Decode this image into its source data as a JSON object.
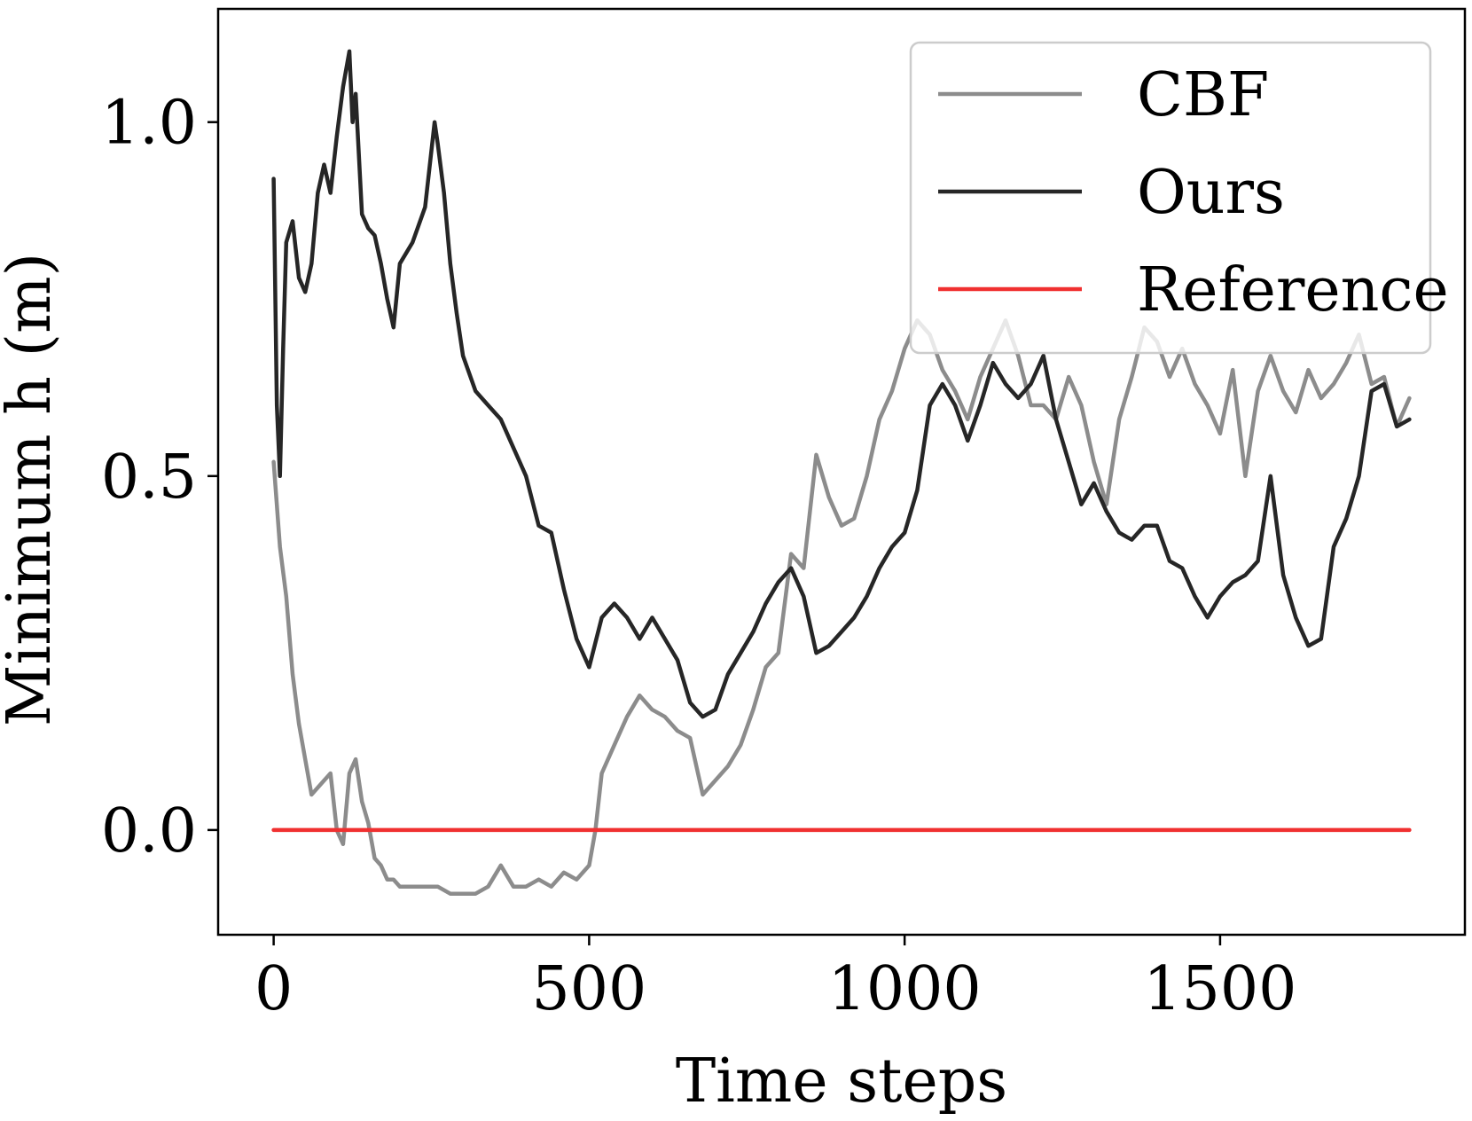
{
  "chart_data": {
    "type": "line",
    "title": "",
    "xlabel": "Time steps",
    "ylabel": "Minimum h (m)",
    "xlim": [
      -88,
      1888
    ],
    "ylim": [
      -0.148,
      1.16
    ],
    "xticks": [
      0,
      500,
      1000,
      1500
    ],
    "xtick_labels": [
      "0",
      "500",
      "1000",
      "1500"
    ],
    "yticks": [
      0.0,
      0.5,
      1.0
    ],
    "ytick_labels": [
      "0.0",
      "0.5",
      "1.0"
    ],
    "grid": false,
    "legend": {
      "position": "top-right",
      "alpha": 0.8
    },
    "series": [
      {
        "name": "CBF",
        "color": "#8c8c8c",
        "x": [
          0,
          10,
          20,
          30,
          40,
          50,
          60,
          70,
          80,
          90,
          100,
          110,
          120,
          130,
          140,
          150,
          160,
          170,
          180,
          190,
          200,
          220,
          240,
          260,
          280,
          300,
          320,
          340,
          360,
          380,
          400,
          420,
          440,
          460,
          480,
          500,
          510,
          520,
          540,
          560,
          580,
          600,
          620,
          640,
          660,
          680,
          700,
          720,
          740,
          760,
          780,
          800,
          820,
          840,
          860,
          880,
          900,
          920,
          940,
          960,
          980,
          1000,
          1020,
          1040,
          1060,
          1080,
          1100,
          1120,
          1140,
          1160,
          1180,
          1200,
          1220,
          1240,
          1260,
          1280,
          1300,
          1320,
          1340,
          1360,
          1380,
          1400,
          1420,
          1440,
          1460,
          1480,
          1500,
          1520,
          1540,
          1560,
          1580,
          1600,
          1620,
          1640,
          1660,
          1680,
          1700,
          1720,
          1740,
          1760,
          1780,
          1800
        ],
        "values": [
          0.52,
          0.4,
          0.33,
          0.22,
          0.15,
          0.1,
          0.05,
          0.06,
          0.07,
          0.08,
          0.0,
          -0.02,
          0.08,
          0.1,
          0.04,
          0.01,
          -0.04,
          -0.05,
          -0.07,
          -0.07,
          -0.08,
          -0.08,
          -0.08,
          -0.08,
          -0.09,
          -0.09,
          -0.09,
          -0.08,
          -0.05,
          -0.08,
          -0.08,
          -0.07,
          -0.08,
          -0.06,
          -0.07,
          -0.05,
          0.0,
          0.08,
          0.12,
          0.16,
          0.19,
          0.17,
          0.16,
          0.14,
          0.13,
          0.05,
          0.07,
          0.09,
          0.12,
          0.17,
          0.23,
          0.25,
          0.39,
          0.37,
          0.53,
          0.47,
          0.43,
          0.44,
          0.5,
          0.58,
          0.62,
          0.68,
          0.72,
          0.7,
          0.65,
          0.62,
          0.58,
          0.64,
          0.68,
          0.72,
          0.67,
          0.6,
          0.6,
          0.58,
          0.64,
          0.6,
          0.52,
          0.46,
          0.58,
          0.64,
          0.71,
          0.69,
          0.64,
          0.68,
          0.63,
          0.6,
          0.56,
          0.65,
          0.5,
          0.62,
          0.67,
          0.62,
          0.59,
          0.65,
          0.61,
          0.63,
          0.66,
          0.7,
          0.63,
          0.64,
          0.57,
          0.61
        ]
      },
      {
        "name": "Ours",
        "color": "#262626",
        "x": [
          0,
          5,
          10,
          15,
          20,
          30,
          40,
          50,
          60,
          70,
          80,
          90,
          100,
          110,
          120,
          125,
          130,
          140,
          150,
          160,
          170,
          180,
          190,
          200,
          220,
          240,
          255,
          260,
          270,
          280,
          290,
          300,
          320,
          340,
          360,
          380,
          400,
          420,
          440,
          460,
          480,
          500,
          520,
          540,
          560,
          580,
          600,
          620,
          640,
          660,
          680,
          700,
          720,
          740,
          760,
          780,
          800,
          820,
          840,
          860,
          880,
          900,
          920,
          940,
          960,
          980,
          1000,
          1020,
          1040,
          1060,
          1080,
          1100,
          1120,
          1140,
          1160,
          1180,
          1200,
          1220,
          1240,
          1260,
          1280,
          1300,
          1320,
          1340,
          1360,
          1380,
          1400,
          1420,
          1440,
          1460,
          1480,
          1500,
          1520,
          1540,
          1560,
          1580,
          1600,
          1620,
          1640,
          1660,
          1680,
          1700,
          1720,
          1740,
          1760,
          1780,
          1800
        ],
        "values": [
          0.92,
          0.6,
          0.5,
          0.68,
          0.83,
          0.86,
          0.78,
          0.76,
          0.8,
          0.9,
          0.94,
          0.9,
          0.98,
          1.05,
          1.1,
          1.0,
          1.04,
          0.87,
          0.85,
          0.84,
          0.8,
          0.75,
          0.71,
          0.8,
          0.83,
          0.88,
          1.0,
          0.97,
          0.9,
          0.8,
          0.73,
          0.67,
          0.62,
          0.6,
          0.58,
          0.54,
          0.5,
          0.43,
          0.42,
          0.34,
          0.27,
          0.23,
          0.3,
          0.32,
          0.3,
          0.27,
          0.3,
          0.27,
          0.24,
          0.18,
          0.16,
          0.17,
          0.22,
          0.25,
          0.28,
          0.32,
          0.35,
          0.37,
          0.33,
          0.25,
          0.26,
          0.28,
          0.3,
          0.33,
          0.37,
          0.4,
          0.42,
          0.48,
          0.6,
          0.63,
          0.6,
          0.55,
          0.6,
          0.66,
          0.63,
          0.61,
          0.63,
          0.67,
          0.58,
          0.52,
          0.46,
          0.49,
          0.45,
          0.42,
          0.41,
          0.43,
          0.43,
          0.38,
          0.37,
          0.33,
          0.3,
          0.33,
          0.35,
          0.36,
          0.38,
          0.5,
          0.36,
          0.3,
          0.26,
          0.27,
          0.4,
          0.44,
          0.5,
          0.62,
          0.63,
          0.57,
          0.58
        ]
      },
      {
        "name": "Reference",
        "color": "#f03030",
        "x": [
          0,
          1800
        ],
        "values": [
          0.0,
          0.0
        ]
      }
    ]
  }
}
